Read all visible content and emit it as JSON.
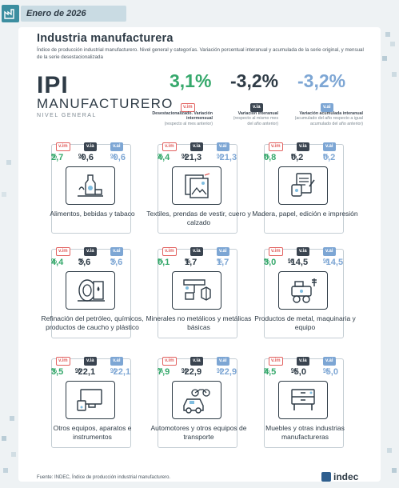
{
  "header": {
    "date": "Enero de 2026"
  },
  "title": "Industria manufacturera",
  "subtitle": "Índice de producción industrial manufacturero. Nivel general y categorías. Variación porcentual interanual y acumulada de la serie original, y mensual de la serie desestacionalizada",
  "ipi": {
    "line1": "IPI",
    "line2": "MANUFACTURERO",
    "line3": "NIVEL GENERAL"
  },
  "badges": {
    "vim": "v.im",
    "via": "v.ia",
    "vai": "v.ai"
  },
  "headline": [
    {
      "value": "3,1%",
      "badge": "v.im",
      "desc_title": "Desestacionalizado. Variación intermensual",
      "desc_sub": "(respecto al mes anterior)",
      "color": "#35a86b"
    },
    {
      "value": "-3,2%",
      "badge": "v.ia",
      "desc_title": "Variación interanual",
      "desc_sub": "(respecto al mismo mes del año anterior)",
      "color": "#2e3b46"
    },
    {
      "value": "-3,2%",
      "badge": "v.ai",
      "desc_title": "Variación acumulada interanual",
      "desc_sub": "(acumulado del año respecto a igual acumulado del año anterior)",
      "color": "#7da6d4"
    }
  ],
  "sectors": [
    {
      "vim": "2,7",
      "via": "-0,6",
      "vai": "-0,6",
      "label": "Alimentos, bebidas y tabaco",
      "icon": "food-icon"
    },
    {
      "vim": "4,4",
      "via": "-21,3",
      "vai": "-21,3",
      "label": "Textiles, prendas de vestir, cuero y calzado",
      "icon": "textile-icon"
    },
    {
      "vim": "0,8",
      "via": "0,2",
      "vai": "0,2",
      "label": "Madera, papel, edición e impresión",
      "icon": "paper-icon"
    },
    {
      "vim": "4,4",
      "via": "3,6",
      "vai": "3,6",
      "label": "Refinación del petróleo, químicos, productos de caucho y plástico",
      "icon": "oil-icon"
    },
    {
      "vim": "0,1",
      "via": "1,7",
      "vai": "1,7",
      "label": "Minerales no metálicos y metálicas básicas",
      "icon": "minerals-icon"
    },
    {
      "vim": "3,0",
      "via": "-14,5",
      "vai": "-14,5",
      "label": "Productos de metal, maquinaria y equipo",
      "icon": "machinery-icon"
    },
    {
      "vim": "3,5",
      "via": "-22,1",
      "vai": "-22,1",
      "label": "Otros equipos, aparatos e instrumentos",
      "icon": "devices-icon"
    },
    {
      "vim": "7,9",
      "via": "-22,9",
      "vai": "-22,9",
      "label": "Automotores y otros equipos de transporte",
      "icon": "vehicles-icon"
    },
    {
      "vim": "4,5",
      "via": "-5,0",
      "vai": "-5,0",
      "label": "Muebles y otras industrias manufactureras",
      "icon": "furniture-icon"
    }
  ],
  "percent": "%",
  "footer": "Fuente: INDEC, Índice de producción industrial manufacturero.",
  "brand": "indec",
  "colors": {
    "green": "#35a86b",
    "dark": "#2e3b46",
    "blue": "#7da6d4",
    "red": "#e2615f"
  }
}
